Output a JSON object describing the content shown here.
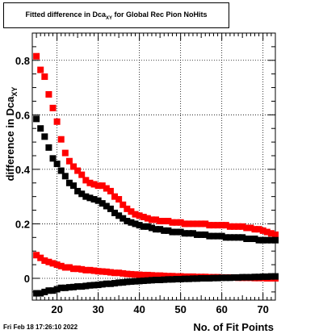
{
  "chart_data": {
    "type": "scatter",
    "title_main": "Fitted difference in Dca",
    "title_sub": "XY",
    "title_rest": " for Global Rec Pion NoHits",
    "xlabel": "No. of Fit Points",
    "ylabel_main": "difference in Dca",
    "ylabel_sub": "XY",
    "xlim": [
      14,
      73
    ],
    "ylim": [
      -0.08,
      0.9
    ],
    "xticks": [
      "20",
      "30",
      "40",
      "50",
      "60",
      "70"
    ],
    "yticks": [
      "0",
      "0.2",
      "0.4",
      "0.6",
      "0.8"
    ],
    "grid": true,
    "x": [
      15,
      16,
      17,
      18,
      19,
      20,
      21,
      22,
      23,
      24,
      25,
      26,
      27,
      28,
      29,
      30,
      31,
      32,
      33,
      34,
      35,
      36,
      37,
      38,
      39,
      40,
      41,
      42,
      43,
      44,
      45,
      46,
      47,
      48,
      49,
      50,
      51,
      52,
      53,
      54,
      55,
      56,
      57,
      58,
      59,
      60,
      61,
      62,
      63,
      64,
      65,
      66,
      67,
      68,
      69,
      70,
      71,
      72,
      73
    ],
    "series": [
      {
        "color": "#ff0000",
        "values": [
          0.815,
          0.765,
          0.74,
          0.675,
          0.625,
          0.575,
          0.51,
          0.46,
          0.43,
          0.41,
          0.395,
          0.38,
          0.36,
          0.35,
          0.345,
          0.34,
          0.34,
          0.33,
          0.32,
          0.3,
          0.29,
          0.27,
          0.255,
          0.245,
          0.235,
          0.23,
          0.225,
          0.22,
          0.215,
          0.215,
          0.21,
          0.21,
          0.21,
          0.205,
          0.205,
          0.205,
          0.2,
          0.2,
          0.2,
          0.2,
          0.2,
          0.2,
          0.195,
          0.195,
          0.195,
          0.195,
          0.195,
          0.19,
          0.19,
          0.19,
          0.19,
          0.185,
          0.185,
          0.18,
          0.18,
          0.175,
          0.17,
          0.165,
          0.16
        ]
      },
      {
        "color": "#000000",
        "values": [
          0.585,
          0.55,
          0.52,
          0.48,
          0.44,
          0.42,
          0.395,
          0.375,
          0.35,
          0.34,
          0.32,
          0.31,
          0.3,
          0.295,
          0.29,
          0.285,
          0.275,
          0.265,
          0.255,
          0.24,
          0.23,
          0.22,
          0.21,
          0.205,
          0.2,
          0.195,
          0.19,
          0.19,
          0.185,
          0.18,
          0.18,
          0.175,
          0.175,
          0.17,
          0.17,
          0.17,
          0.165,
          0.165,
          0.165,
          0.16,
          0.16,
          0.16,
          0.155,
          0.155,
          0.155,
          0.155,
          0.15,
          0.15,
          0.15,
          0.15,
          0.15,
          0.145,
          0.145,
          0.145,
          0.14,
          0.14,
          0.14,
          0.14,
          0.14
        ]
      },
      {
        "color": "#ff0000",
        "values": [
          0.085,
          0.075,
          0.065,
          0.06,
          0.055,
          0.05,
          0.045,
          0.04,
          0.04,
          0.035,
          0.035,
          0.033,
          0.03,
          0.03,
          0.028,
          0.026,
          0.025,
          0.024,
          0.022,
          0.02,
          0.02,
          0.018,
          0.016,
          0.015,
          0.014,
          0.013,
          0.012,
          0.012,
          0.011,
          0.01,
          0.01,
          0.009,
          0.008,
          0.008,
          0.007,
          0.007,
          0.006,
          0.006,
          0.006,
          0.005,
          0.005,
          0.005,
          0.004,
          0.004,
          0.004,
          0.003,
          0.003,
          0.003,
          0.003,
          0.002,
          0.002,
          0.002,
          0.002,
          0.001,
          0.001,
          0.001,
          0.0,
          0.0,
          0.0
        ]
      },
      {
        "color": "#000000",
        "values": [
          -0.055,
          -0.055,
          -0.05,
          -0.045,
          -0.045,
          -0.04,
          -0.035,
          -0.035,
          -0.033,
          -0.032,
          -0.03,
          -0.03,
          -0.028,
          -0.026,
          -0.025,
          -0.024,
          -0.022,
          -0.02,
          -0.02,
          -0.018,
          -0.016,
          -0.015,
          -0.013,
          -0.012,
          -0.011,
          -0.01,
          -0.009,
          -0.008,
          -0.007,
          -0.006,
          -0.006,
          -0.005,
          -0.004,
          -0.004,
          -0.003,
          -0.003,
          -0.002,
          -0.002,
          -0.001,
          -0.001,
          0.0,
          0.0,
          0.0,
          0.001,
          0.001,
          0.002,
          0.002,
          0.002,
          0.003,
          0.003,
          0.004,
          0.004,
          0.004,
          0.005,
          0.005,
          0.006,
          0.006,
          0.007,
          0.007
        ]
      }
    ]
  },
  "footer": {
    "timestamp": "Fri Feb 18 17:26:10 2022"
  }
}
